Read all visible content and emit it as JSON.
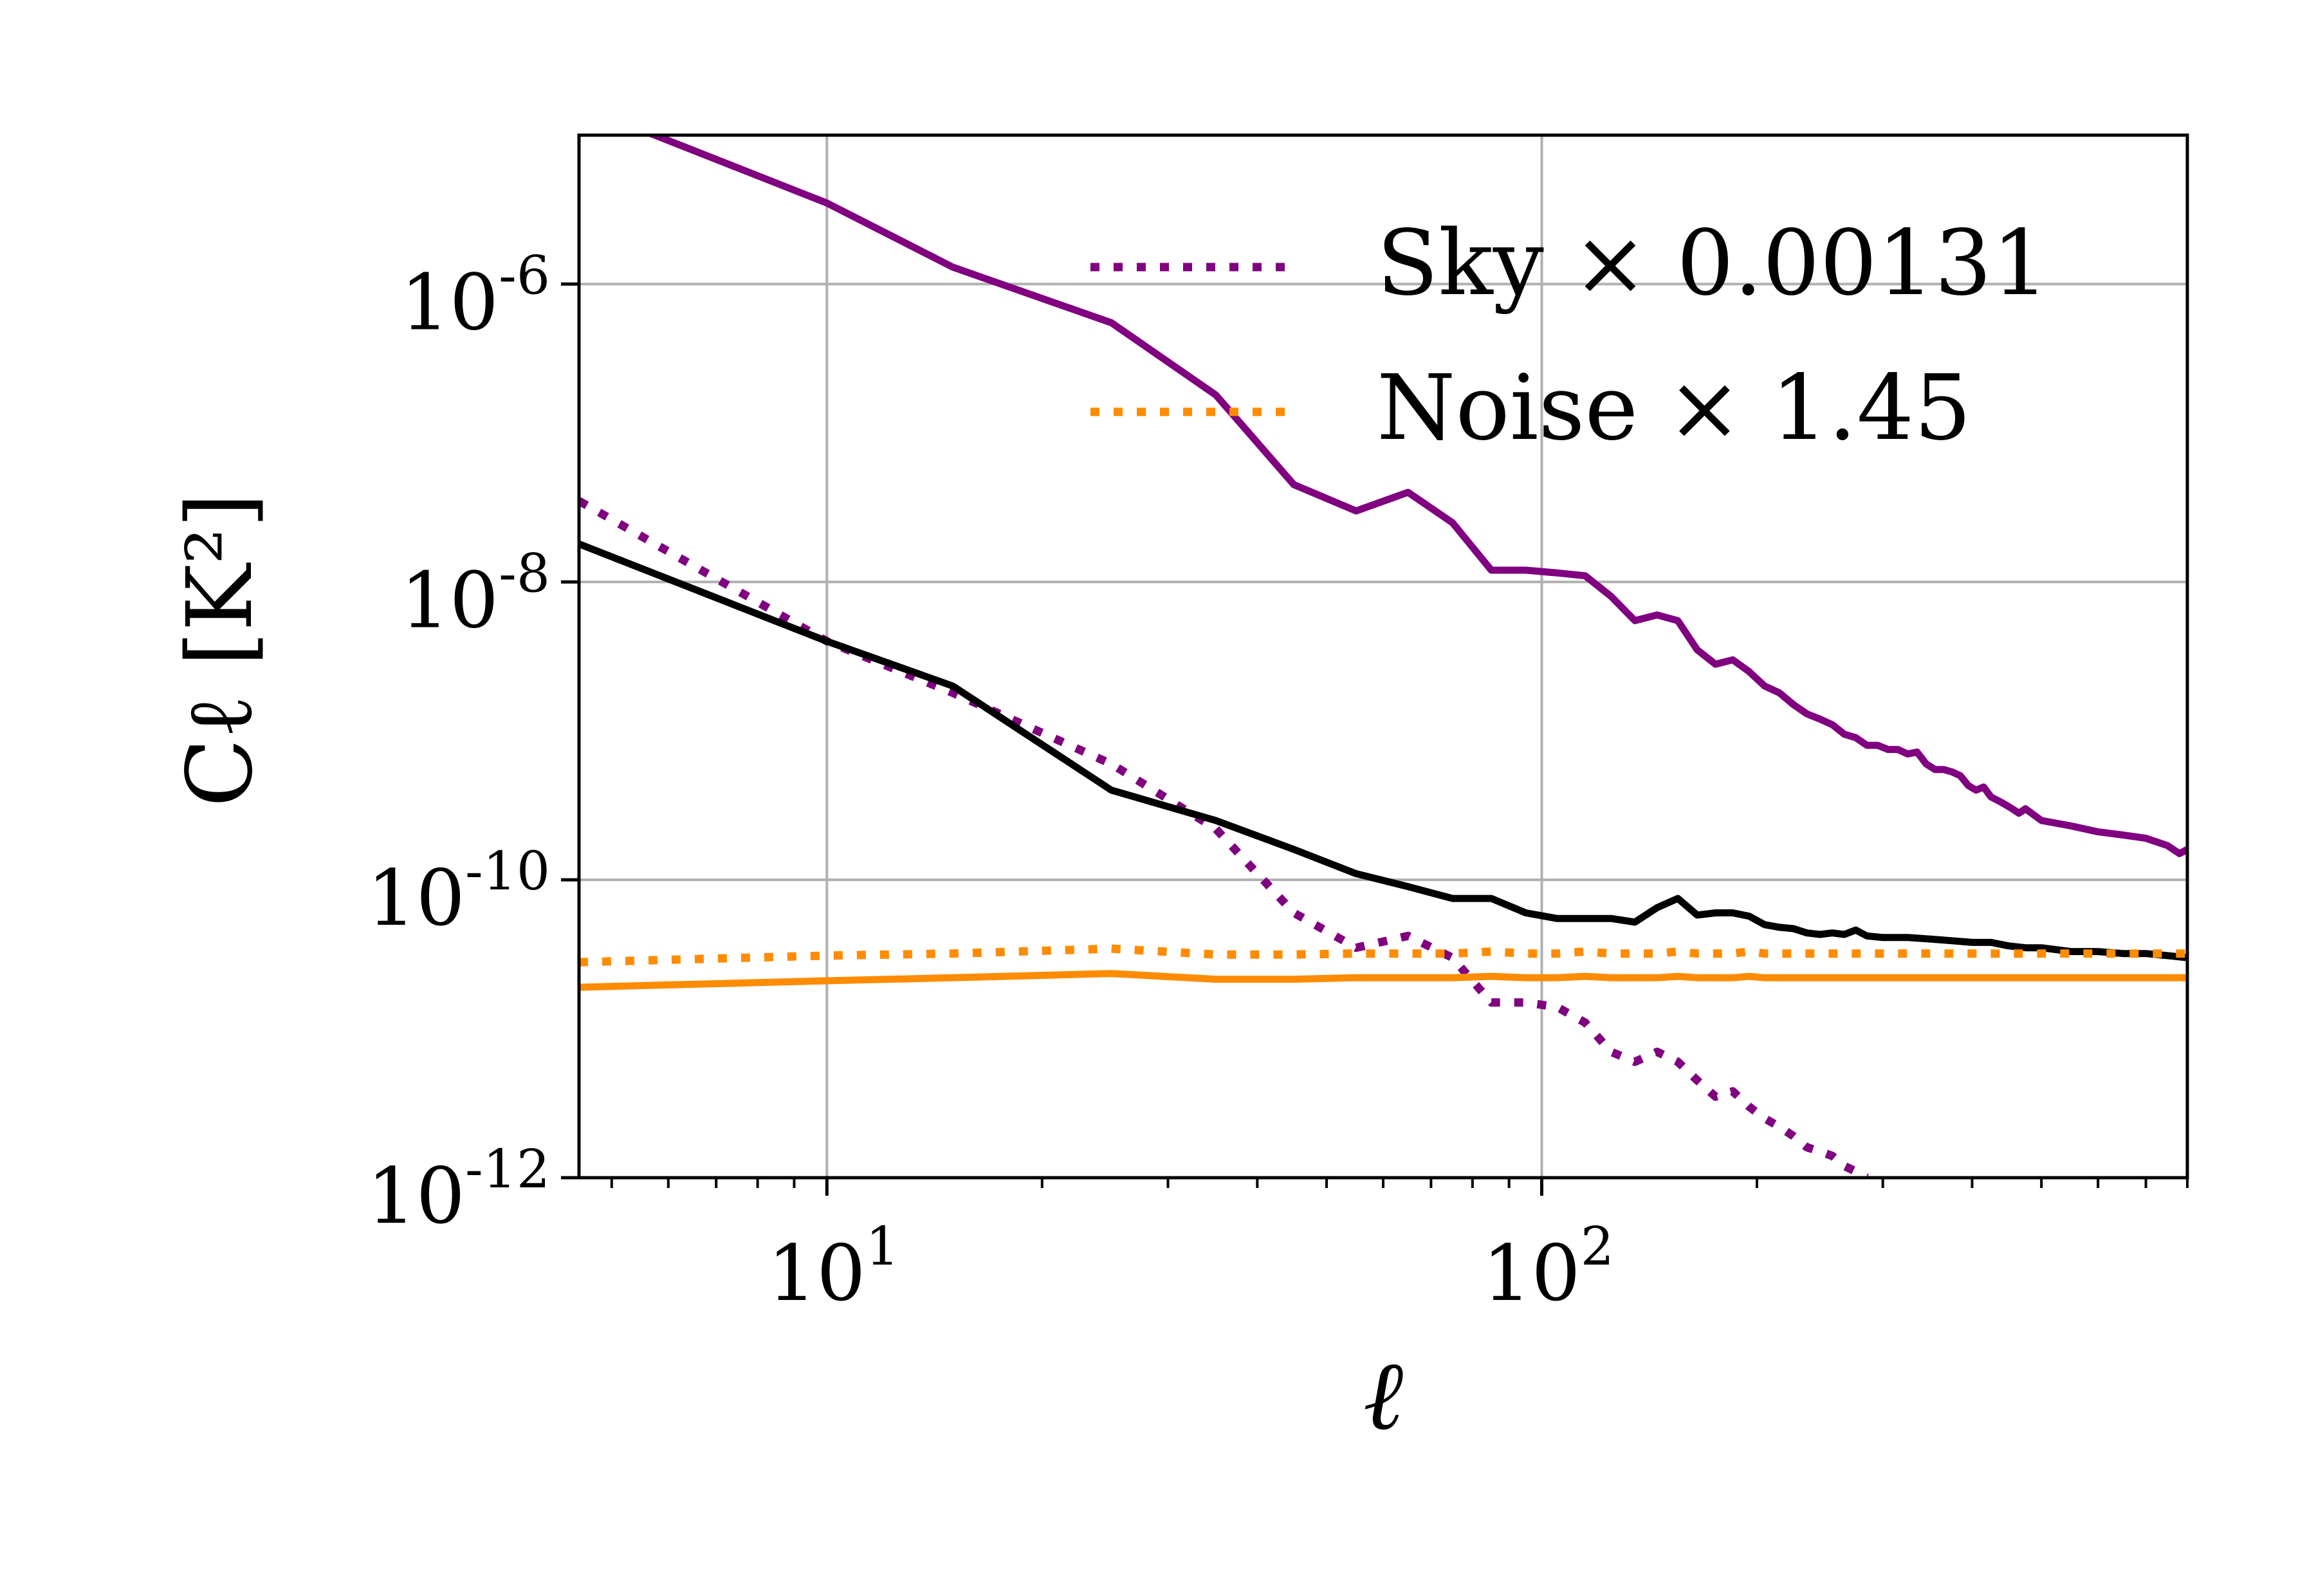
{
  "chart_data": {
    "type": "line",
    "xlabel": "ℓ",
    "ylabel": "Cℓ [K²]",
    "xscale": "log",
    "yscale": "log",
    "xlim": [
      4.5,
      800
    ],
    "ylim": [
      1e-12,
      1e-05
    ],
    "grid": true,
    "legend_position": "top-right",
    "x_ticks": [
      {
        "value": 10,
        "label": "10",
        "exp": "1"
      },
      {
        "value": 100,
        "label": "10",
        "exp": "2"
      }
    ],
    "y_ticks": [
      {
        "value": 1e-06,
        "label": "10",
        "exp": "-6"
      },
      {
        "value": 1e-08,
        "label": "10",
        "exp": "-8"
      },
      {
        "value": 1e-10,
        "label": "10",
        "exp": "-10"
      },
      {
        "value": 1e-12,
        "label": "10",
        "exp": "-12"
      }
    ],
    "legend": [
      {
        "label": "Sky × 0.00131",
        "color": "#800080",
        "style": "dotted"
      },
      {
        "label": "Noise × 1.45",
        "color": "#ff8c00",
        "style": "dotted"
      }
    ],
    "series": [
      {
        "color": "#800080",
        "style": "solid",
        "x": [
          5,
          10,
          15,
          25,
          35,
          45,
          55,
          65,
          75,
          85,
          95,
          105,
          115,
          125,
          135,
          145,
          155,
          165,
          175,
          185,
          195,
          205,
          215,
          225,
          235,
          245,
          255,
          265,
          275,
          285,
          295,
          305,
          315,
          325,
          335,
          345,
          355,
          365,
          375,
          385,
          395,
          405,
          415,
          425,
          435,
          445,
          455,
          465,
          475,
          500,
          550,
          600,
          650,
          700,
          750,
          780,
          800
        ],
        "y": [
          1.3e-05,
          3.5e-06,
          1.3e-06,
          5.5e-07,
          1.8e-07,
          4.5e-08,
          3e-08,
          4e-08,
          2.5e-08,
          1.2e-08,
          1.2e-08,
          1.15e-08,
          1.1e-08,
          8e-09,
          5.5e-09,
          6e-09,
          5.5e-09,
          3.5e-09,
          2.8e-09,
          3e-09,
          2.5e-09,
          2e-09,
          1.8e-09,
          1.5e-09,
          1.3e-09,
          1.2e-09,
          1.1e-09,
          9.5e-10,
          9e-10,
          8e-10,
          8e-10,
          7.5e-10,
          7.5e-10,
          7e-10,
          7.2e-10,
          6e-10,
          5.5e-10,
          5.5e-10,
          5.3e-10,
          5e-10,
          4.3e-10,
          4e-10,
          4.2e-10,
          3.6e-10,
          3.4e-10,
          3.2e-10,
          3e-10,
          2.8e-10,
          3e-10,
          2.5e-10,
          2.3e-10,
          2.1e-10,
          2e-10,
          1.9e-10,
          1.7e-10,
          1.5e-10,
          1.6e-10
        ]
      },
      {
        "color": "#800080",
        "style": "dotted",
        "x": [
          4.5,
          10,
          15,
          25,
          35,
          45,
          55,
          65,
          75,
          85,
          95,
          105,
          115,
          125,
          135,
          145,
          155,
          165,
          175,
          185,
          195,
          205,
          215,
          225,
          235,
          245,
          255,
          265,
          275,
          285
        ],
        "y": [
          3.5e-08,
          4e-09,
          1.8e-09,
          6e-10,
          2.2e-10,
          6e-11,
          3.5e-11,
          4.2e-11,
          3e-11,
          1.5e-11,
          1.5e-11,
          1.4e-11,
          1.1e-11,
          7e-12,
          6e-12,
          7e-12,
          6e-12,
          4.5e-12,
          3.5e-12,
          3.8e-12,
          3e-12,
          2.5e-12,
          2.2e-12,
          1.9e-12,
          1.6e-12,
          1.5e-12,
          1.4e-12,
          1.2e-12,
          1.1e-12,
          1e-12
        ]
      },
      {
        "color": "#000000",
        "style": "solid",
        "x": [
          4.5,
          10,
          15,
          25,
          35,
          45,
          55,
          65,
          75,
          85,
          95,
          105,
          115,
          125,
          135,
          145,
          155,
          165,
          175,
          185,
          195,
          205,
          215,
          225,
          235,
          245,
          255,
          265,
          275,
          285,
          300,
          325,
          350,
          375,
          400,
          425,
          450,
          475,
          500,
          550,
          600,
          650,
          700,
          750,
          800
        ],
        "y": [
          1.8e-08,
          4e-09,
          2e-09,
          4e-10,
          2.5e-10,
          1.6e-10,
          1.1e-10,
          9e-11,
          7.5e-11,
          7.5e-11,
          6e-11,
          5.5e-11,
          5.5e-11,
          5.5e-11,
          5.2e-11,
          6.5e-11,
          7.5e-11,
          5.8e-11,
          6e-11,
          6e-11,
          5.7e-11,
          5e-11,
          4.8e-11,
          4.7e-11,
          4.4e-11,
          4.3e-11,
          4.4e-11,
          4.3e-11,
          4.6e-11,
          4.2e-11,
          4.1e-11,
          4.1e-11,
          4e-11,
          3.9e-11,
          3.8e-11,
          3.8e-11,
          3.6e-11,
          3.5e-11,
          3.5e-11,
          3.3e-11,
          3.3e-11,
          3.2e-11,
          3.2e-11,
          3.1e-11,
          3e-11
        ]
      },
      {
        "color": "#ff8c00",
        "style": "solid",
        "x": [
          4.5,
          10,
          15,
          25,
          35,
          45,
          55,
          65,
          75,
          85,
          95,
          105,
          115,
          125,
          135,
          145,
          155,
          165,
          175,
          185,
          195,
          205,
          250,
          300,
          350,
          400,
          450,
          500,
          550,
          600,
          650,
          700,
          750,
          800
        ],
        "y": [
          1.9e-11,
          2.1e-11,
          2.2e-11,
          2.35e-11,
          2.15e-11,
          2.15e-11,
          2.2e-11,
          2.2e-11,
          2.2e-11,
          2.25e-11,
          2.2e-11,
          2.2e-11,
          2.25e-11,
          2.2e-11,
          2.2e-11,
          2.2e-11,
          2.25e-11,
          2.2e-11,
          2.2e-11,
          2.2e-11,
          2.25e-11,
          2.2e-11,
          2.2e-11,
          2.2e-11,
          2.2e-11,
          2.2e-11,
          2.2e-11,
          2.2e-11,
          2.2e-11,
          2.2e-11,
          2.2e-11,
          2.2e-11,
          2.2e-11,
          2.2e-11
        ]
      },
      {
        "color": "#ff8c00",
        "style": "dotted",
        "x": [
          4.5,
          10,
          15,
          25,
          35,
          45,
          55,
          65,
          75,
          85,
          95,
          105,
          115,
          125,
          135,
          145,
          155,
          165,
          175,
          185,
          195,
          205,
          250,
          300,
          350,
          400,
          450,
          500,
          550,
          600,
          650,
          700,
          750,
          800
        ],
        "y": [
          2.8e-11,
          3.1e-11,
          3.2e-11,
          3.45e-11,
          3.15e-11,
          3.15e-11,
          3.2e-11,
          3.2e-11,
          3.2e-11,
          3.3e-11,
          3.2e-11,
          3.2e-11,
          3.3e-11,
          3.2e-11,
          3.2e-11,
          3.2e-11,
          3.3e-11,
          3.2e-11,
          3.2e-11,
          3.2e-11,
          3.3e-11,
          3.2e-11,
          3.2e-11,
          3.2e-11,
          3.2e-11,
          3.2e-11,
          3.2e-11,
          3.2e-11,
          3.2e-11,
          3.2e-11,
          3.2e-11,
          3.2e-11,
          3.2e-11,
          3.2e-11
        ]
      }
    ]
  }
}
